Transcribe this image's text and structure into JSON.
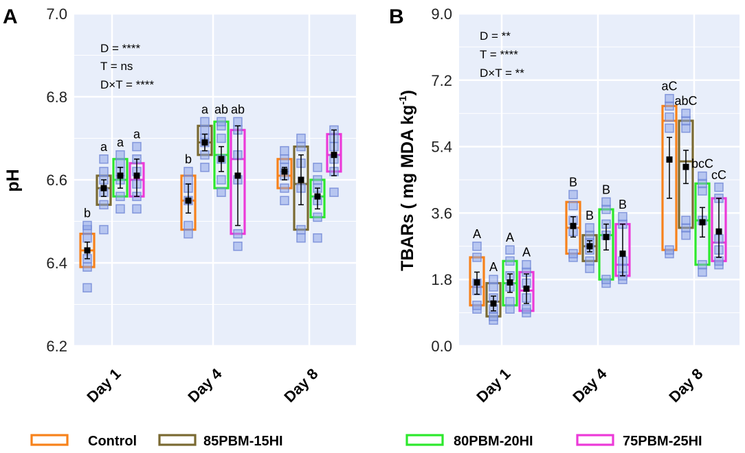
{
  "chart_data": [
    {
      "panel": "A",
      "type": "box",
      "ylabel": "pH",
      "ylim": [
        6.2,
        7.0
      ],
      "yticks": [
        "6.2",
        "6.4",
        "6.6",
        "6.8",
        "7.0"
      ],
      "ytick_values": [
        6.2,
        6.4,
        6.6,
        6.8,
        7.0
      ],
      "categories": [
        "Day 1",
        "Day 4",
        "Day 8"
      ],
      "series_names": [
        "Control",
        "85PBM-15HI",
        "80PBM-20HI",
        "75PBM-25HI"
      ],
      "stats_text": [
        "D = ****",
        "T = ns",
        "D×T = ****"
      ],
      "groups": [
        [
          {
            "q1": 6.39,
            "q3": 6.47,
            "median": 6.43,
            "mean": 6.43,
            "sd_low": 6.41,
            "sd_high": 6.45,
            "points": [
              6.34,
              6.39,
              6.41,
              6.46,
              6.48,
              6.49
            ],
            "label": "b"
          },
          {
            "q1": 6.54,
            "q3": 6.61,
            "median": 6.58,
            "mean": 6.58,
            "sd_low": 6.56,
            "sd_high": 6.6,
            "points": [
              6.48,
              6.54,
              6.57,
              6.6,
              6.62,
              6.65
            ],
            "label": "a"
          },
          {
            "q1": 6.56,
            "q3": 6.65,
            "median": 6.6,
            "mean": 6.61,
            "sd_low": 6.58,
            "sd_high": 6.63,
            "points": [
              6.53,
              6.56,
              6.6,
              6.62,
              6.64,
              6.66
            ],
            "label": "a"
          },
          {
            "q1": 6.56,
            "q3": 6.64,
            "median": 6.6,
            "mean": 6.61,
            "sd_low": 6.56,
            "sd_high": 6.65,
            "points": [
              6.53,
              6.56,
              6.59,
              6.62,
              6.65,
              6.68
            ],
            "label": "a"
          }
        ],
        [
          {
            "q1": 6.48,
            "q3": 6.61,
            "median": 6.55,
            "mean": 6.55,
            "sd_low": 6.52,
            "sd_high": 6.59,
            "points": [
              6.47,
              6.49,
              6.55,
              6.58,
              6.6,
              6.62
            ],
            "label": "b"
          },
          {
            "q1": 6.66,
            "q3": 6.73,
            "median": 6.69,
            "mean": 6.69,
            "sd_low": 6.67,
            "sd_high": 6.71,
            "points": [
              6.63,
              6.66,
              6.69,
              6.7,
              6.72,
              6.74
            ],
            "label": "a"
          },
          {
            "q1": 6.58,
            "q3": 6.74,
            "median": 6.66,
            "mean": 6.65,
            "sd_low": 6.62,
            "sd_high": 6.68,
            "points": [
              6.57,
              6.6,
              6.65,
              6.7,
              6.73,
              6.74
            ],
            "label": "ab"
          },
          {
            "q1": 6.47,
            "q3": 6.72,
            "median": 6.65,
            "mean": 6.61,
            "sd_low": 6.49,
            "sd_high": 6.73,
            "points": [
              6.44,
              6.47,
              6.6,
              6.66,
              6.72,
              6.74
            ],
            "label": "ab"
          }
        ],
        [
          {
            "q1": 6.58,
            "q3": 6.65,
            "median": 6.61,
            "mean": 6.62,
            "sd_low": 6.6,
            "sd_high": 6.63,
            "points": [
              6.55,
              6.58,
              6.61,
              6.63,
              6.65,
              6.67
            ],
            "label": ""
          },
          {
            "q1": 6.48,
            "q3": 6.68,
            "median": 6.59,
            "mean": 6.6,
            "sd_low": 6.54,
            "sd_high": 6.66,
            "points": [
              6.46,
              6.48,
              6.58,
              6.64,
              6.68,
              6.7
            ],
            "label": ""
          },
          {
            "q1": 6.51,
            "q3": 6.6,
            "median": 6.56,
            "mean": 6.56,
            "sd_low": 6.53,
            "sd_high": 6.58,
            "points": [
              6.46,
              6.51,
              6.55,
              6.58,
              6.6,
              6.63
            ],
            "label": ""
          },
          {
            "q1": 6.62,
            "q3": 6.71,
            "median": 6.66,
            "mean": 6.66,
            "sd_low": 6.61,
            "sd_high": 6.72,
            "points": [
              6.57,
              6.62,
              6.65,
              6.68,
              6.7,
              6.72
            ],
            "label": ""
          }
        ]
      ]
    },
    {
      "panel": "B",
      "type": "box",
      "ylabel": "TBARs ( mg MDA kg-1)",
      "ylabel_parts": [
        "TBARs ( mg MDA kg",
        "-1",
        ")"
      ],
      "ylim": [
        0.0,
        9.0
      ],
      "yticks": [
        "0.0",
        "1.8",
        "3.6",
        "5.4",
        "7.2",
        "9.0"
      ],
      "ytick_values": [
        0.0,
        1.8,
        3.6,
        5.4,
        7.2,
        9.0
      ],
      "categories": [
        "Day 1",
        "Day 4",
        "Day 8"
      ],
      "series_names": [
        "Control",
        "85PBM-15HI",
        "80PBM-20HI",
        "75PBM-25HI"
      ],
      "stats_text": [
        "D = **",
        "T = ****",
        "D×T = **"
      ],
      "groups": [
        [
          {
            "q1": 1.1,
            "q3": 2.4,
            "median": 1.6,
            "mean": 1.72,
            "sd_low": 1.4,
            "sd_high": 2.0,
            "points": [
              1.0,
              1.1,
              1.5,
              1.7,
              2.4,
              2.7
            ],
            "label": "A"
          },
          {
            "q1": 0.8,
            "q3": 1.7,
            "median": 1.2,
            "mean": 1.15,
            "sd_low": 0.95,
            "sd_high": 1.35,
            "points": [
              0.7,
              0.8,
              1.0,
              1.3,
              1.6,
              1.8
            ],
            "label": "A"
          },
          {
            "q1": 1.1,
            "q3": 2.3,
            "median": 1.7,
            "mean": 1.72,
            "sd_low": 1.45,
            "sd_high": 1.95,
            "points": [
              1.0,
              1.2,
              1.6,
              1.9,
              2.3,
              2.6
            ],
            "label": "A"
          },
          {
            "q1": 0.95,
            "q3": 2.0,
            "median": 1.5,
            "mean": 1.55,
            "sd_low": 1.15,
            "sd_high": 1.95,
            "points": [
              0.9,
              1.0,
              1.3,
              1.7,
              2.0,
              2.2
            ],
            "label": "A"
          }
        ],
        [
          {
            "q1": 2.5,
            "q3": 3.9,
            "median": 3.2,
            "mean": 3.25,
            "sd_low": 2.95,
            "sd_high": 3.5,
            "points": [
              2.4,
              2.5,
              3.1,
              3.4,
              3.8,
              4.1
            ],
            "label": "B"
          },
          {
            "q1": 2.3,
            "q3": 3.0,
            "median": 2.7,
            "mean": 2.7,
            "sd_low": 2.55,
            "sd_high": 2.85,
            "points": [
              2.1,
              2.3,
              2.6,
              2.8,
              3.0,
              3.2
            ],
            "label": "B"
          },
          {
            "q1": 1.8,
            "q3": 3.7,
            "median": 3.0,
            "mean": 2.95,
            "sd_low": 2.6,
            "sd_high": 3.3,
            "points": [
              1.7,
              1.8,
              3.0,
              3.3,
              3.7,
              3.9
            ],
            "label": "B"
          },
          {
            "q1": 1.9,
            "q3": 3.3,
            "median": 2.2,
            "mean": 2.5,
            "sd_low": 1.9,
            "sd_high": 3.3,
            "points": [
              1.8,
              1.9,
              2.1,
              2.3,
              3.3,
              3.5
            ],
            "label": "B"
          }
        ],
        [
          {
            "q1": 2.6,
            "q3": 6.5,
            "median": 6.1,
            "mean": 5.05,
            "sd_low": 4.0,
            "sd_high": 5.65,
            "points": [
              2.5,
              2.6,
              5.9,
              6.2,
              6.5,
              6.7
            ],
            "label": "aC"
          },
          {
            "q1": 3.2,
            "q3": 6.1,
            "median": 5.0,
            "mean": 4.85,
            "sd_low": 4.4,
            "sd_high": 5.3,
            "points": [
              3.0,
              3.2,
              3.4,
              5.9,
              6.1,
              6.3
            ],
            "label": "abC"
          },
          {
            "q1": 2.2,
            "q3": 4.4,
            "median": 3.4,
            "mean": 3.35,
            "sd_low": 2.95,
            "sd_high": 3.75,
            "points": [
              2.0,
              2.2,
              3.4,
              4.2,
              4.4,
              4.6
            ],
            "label": "bcC"
          },
          {
            "q1": 2.3,
            "q3": 4.0,
            "median": 2.8,
            "mean": 3.1,
            "sd_low": 2.4,
            "sd_high": 4.0,
            "points": [
              2.2,
              2.3,
              2.6,
              2.9,
              4.0,
              4.3
            ],
            "label": "cC"
          }
        ]
      ]
    }
  ],
  "legend": [
    {
      "label": "Control",
      "color": "#f7821b"
    },
    {
      "label": "85PBM-15HI",
      "color": "#7a6a32"
    },
    {
      "label": "80PBM-20HI",
      "color": "#2de82d"
    },
    {
      "label": "75PBM-25HI",
      "color": "#ec3ad8"
    }
  ],
  "colors": {
    "panel_bg": "#e8eefa",
    "grid": "#ffffff",
    "point_fill": "#8ea6e8",
    "point_stroke": "#6f86d6",
    "mean_marker": "#000000"
  }
}
